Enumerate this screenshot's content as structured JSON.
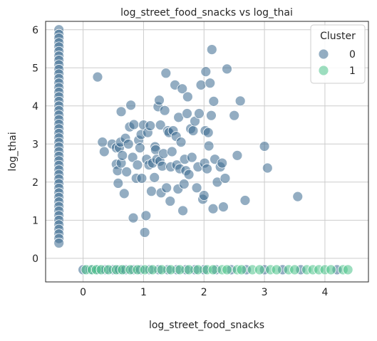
{
  "chart_data": {
    "type": "scatter",
    "title": "log_street_food_snacks vs log_thai",
    "xlabel": "log_street_food_snacks",
    "ylabel": "log_thai",
    "xlim": [
      -0.62,
      4.72
    ],
    "ylim": [
      -0.62,
      6.22
    ],
    "xticks": [
      0,
      1,
      2,
      3,
      4
    ],
    "yticks": [
      0,
      1,
      2,
      3,
      4,
      5,
      6
    ],
    "grid": true,
    "legend": {
      "title": "Cluster",
      "placement": "top-right"
    },
    "series": [
      {
        "name": "0",
        "color": "#3b6a8f",
        "points": [
          [
            -0.4,
            6.0
          ],
          [
            -0.4,
            5.88
          ],
          [
            -0.4,
            5.78
          ],
          [
            -0.4,
            5.66
          ],
          [
            -0.4,
            5.55
          ],
          [
            -0.4,
            5.43
          ],
          [
            -0.4,
            5.31
          ],
          [
            -0.4,
            5.2
          ],
          [
            -0.4,
            5.08
          ],
          [
            -0.4,
            4.96
          ],
          [
            -0.4,
            4.84
          ],
          [
            -0.4,
            4.72
          ],
          [
            -0.4,
            4.6
          ],
          [
            -0.4,
            4.48
          ],
          [
            -0.4,
            4.36
          ],
          [
            -0.4,
            4.24
          ],
          [
            -0.4,
            4.12
          ],
          [
            -0.4,
            4.0
          ],
          [
            -0.4,
            3.88
          ],
          [
            -0.4,
            3.76
          ],
          [
            -0.4,
            3.64
          ],
          [
            -0.4,
            3.52
          ],
          [
            -0.4,
            3.4
          ],
          [
            -0.4,
            3.28
          ],
          [
            -0.4,
            3.16
          ],
          [
            -0.4,
            3.04
          ],
          [
            -0.4,
            2.92
          ],
          [
            -0.4,
            2.8
          ],
          [
            -0.4,
            2.68
          ],
          [
            -0.4,
            2.56
          ],
          [
            -0.4,
            2.44
          ],
          [
            -0.4,
            2.32
          ],
          [
            -0.4,
            2.2
          ],
          [
            -0.4,
            2.08
          ],
          [
            -0.4,
            1.96
          ],
          [
            -0.4,
            1.84
          ],
          [
            -0.4,
            1.72
          ],
          [
            -0.4,
            1.6
          ],
          [
            -0.4,
            1.48
          ],
          [
            -0.4,
            1.36
          ],
          [
            -0.4,
            1.24
          ],
          [
            -0.4,
            1.12
          ],
          [
            -0.4,
            1.0
          ],
          [
            -0.4,
            0.88
          ],
          [
            -0.4,
            0.76
          ],
          [
            -0.4,
            0.64
          ],
          [
            -0.4,
            0.52
          ],
          [
            -0.4,
            0.4
          ],
          [
            0.24,
            4.76
          ],
          [
            0.32,
            3.05
          ],
          [
            0.35,
            2.8
          ],
          [
            0.48,
            3.0
          ],
          [
            0.55,
            2.9
          ],
          [
            0.55,
            2.47
          ],
          [
            0.58,
            1.97
          ],
          [
            0.57,
            2.3
          ],
          [
            0.6,
            2.9
          ],
          [
            0.62,
            3.05
          ],
          [
            0.63,
            2.5
          ],
          [
            0.65,
            2.7
          ],
          [
            0.63,
            3.85
          ],
          [
            0.68,
            1.7
          ],
          [
            0.7,
            3.15
          ],
          [
            0.72,
            2.27
          ],
          [
            0.75,
            3.0
          ],
          [
            0.77,
            3.45
          ],
          [
            0.79,
            4.02
          ],
          [
            0.82,
            2.65
          ],
          [
            0.83,
            1.06
          ],
          [
            0.84,
            3.51
          ],
          [
            0.88,
            2.1
          ],
          [
            0.9,
            2.45
          ],
          [
            0.92,
            3.1
          ],
          [
            0.94,
            2.9
          ],
          [
            0.96,
            3.25
          ],
          [
            0.97,
            2.1
          ],
          [
            1.0,
            3.5
          ],
          [
            1.02,
            0.68
          ],
          [
            1.04,
            1.12
          ],
          [
            1.05,
            2.6
          ],
          [
            1.07,
            3.3
          ],
          [
            1.09,
            2.45
          ],
          [
            1.11,
            3.48
          ],
          [
            1.13,
            1.76
          ],
          [
            1.15,
            2.5
          ],
          [
            1.18,
            2.12
          ],
          [
            1.19,
            2.93
          ],
          [
            1.2,
            2.85
          ],
          [
            1.22,
            2.6
          ],
          [
            1.24,
            3.98
          ],
          [
            1.26,
            4.15
          ],
          [
            1.27,
            2.55
          ],
          [
            1.28,
            3.5
          ],
          [
            1.29,
            1.72
          ],
          [
            1.31,
            2.42
          ],
          [
            1.33,
            2.75
          ],
          [
            1.35,
            3.88
          ],
          [
            1.37,
            4.86
          ],
          [
            1.38,
            1.85
          ],
          [
            1.4,
            3.35
          ],
          [
            1.42,
            3.3
          ],
          [
            1.44,
            1.5
          ],
          [
            1.45,
            2.4
          ],
          [
            1.47,
            2.8
          ],
          [
            1.49,
            3.35
          ],
          [
            1.52,
            4.55
          ],
          [
            1.54,
            3.2
          ],
          [
            1.55,
            2.45
          ],
          [
            1.57,
            1.82
          ],
          [
            1.58,
            3.7
          ],
          [
            1.6,
            2.35
          ],
          [
            1.62,
            3.05
          ],
          [
            1.64,
            4.45
          ],
          [
            1.65,
            1.25
          ],
          [
            1.67,
            1.95
          ],
          [
            1.68,
            2.6
          ],
          [
            1.7,
            2.3
          ],
          [
            1.72,
            3.8
          ],
          [
            1.73,
            4.24
          ],
          [
            1.75,
            2.2
          ],
          [
            1.78,
            3.4
          ],
          [
            1.8,
            2.65
          ],
          [
            1.82,
            3.35
          ],
          [
            1.85,
            3.6
          ],
          [
            1.88,
            1.85
          ],
          [
            1.9,
            2.4
          ],
          [
            1.92,
            3.8
          ],
          [
            1.95,
            4.55
          ],
          [
            1.98,
            1.55
          ],
          [
            2.0,
            1.65
          ],
          [
            2.01,
            2.5
          ],
          [
            2.02,
            3.35
          ],
          [
            2.03,
            4.9
          ],
          [
            2.05,
            2.35
          ],
          [
            2.07,
            3.3
          ],
          [
            2.08,
            2.95
          ],
          [
            2.1,
            4.6
          ],
          [
            2.12,
            3.75
          ],
          [
            2.13,
            5.48
          ],
          [
            2.15,
            1.3
          ],
          [
            2.16,
            4.12
          ],
          [
            2.18,
            2.6
          ],
          [
            2.22,
            2.0
          ],
          [
            2.27,
            2.4
          ],
          [
            2.3,
            2.5
          ],
          [
            2.32,
            1.35
          ],
          [
            2.35,
            2.1
          ],
          [
            2.38,
            4.97
          ],
          [
            2.5,
            3.75
          ],
          [
            2.55,
            2.7
          ],
          [
            2.6,
            4.13
          ],
          [
            2.68,
            1.52
          ],
          [
            3.0,
            2.94
          ],
          [
            3.05,
            2.37
          ],
          [
            3.55,
            1.62
          ],
          [
            0.0,
            -0.3
          ],
          [
            0.12,
            -0.3
          ],
          [
            0.25,
            -0.3
          ],
          [
            0.37,
            -0.3
          ],
          [
            0.5,
            -0.3
          ],
          [
            0.6,
            -0.3
          ],
          [
            0.7,
            -0.3
          ],
          [
            0.83,
            -0.3
          ],
          [
            0.95,
            -0.3
          ],
          [
            1.1,
            -0.3
          ],
          [
            1.25,
            -0.3
          ],
          [
            1.4,
            -0.3
          ],
          [
            1.55,
            -0.3
          ],
          [
            1.7,
            -0.3
          ],
          [
            1.85,
            -0.3
          ],
          [
            2.0,
            -0.3
          ],
          [
            2.2,
            -0.3
          ],
          [
            2.45,
            -0.3
          ],
          [
            2.7,
            -0.3
          ],
          [
            3.0,
            -0.3
          ],
          [
            3.3,
            -0.3
          ],
          [
            3.6,
            -0.3
          ],
          [
            4.2,
            -0.3
          ]
        ]
      },
      {
        "name": "1",
        "color": "#4cc38a",
        "points": [
          [
            0.05,
            -0.3
          ],
          [
            0.15,
            -0.3
          ],
          [
            0.22,
            -0.3
          ],
          [
            0.3,
            -0.3
          ],
          [
            0.42,
            -0.3
          ],
          [
            0.55,
            -0.3
          ],
          [
            0.65,
            -0.3
          ],
          [
            0.78,
            -0.3
          ],
          [
            0.9,
            -0.3
          ],
          [
            1.02,
            -0.3
          ],
          [
            1.15,
            -0.3
          ],
          [
            1.3,
            -0.3
          ],
          [
            1.45,
            -0.3
          ],
          [
            1.6,
            -0.3
          ],
          [
            1.75,
            -0.3
          ],
          [
            1.9,
            -0.3
          ],
          [
            2.05,
            -0.3
          ],
          [
            2.15,
            -0.3
          ],
          [
            2.3,
            -0.3
          ],
          [
            2.38,
            -0.3
          ],
          [
            2.55,
            -0.3
          ],
          [
            2.62,
            -0.3
          ],
          [
            2.8,
            -0.3
          ],
          [
            2.92,
            -0.3
          ],
          [
            3.1,
            -0.3
          ],
          [
            3.2,
            -0.3
          ],
          [
            3.4,
            -0.3
          ],
          [
            3.5,
            -0.3
          ],
          [
            3.7,
            -0.3
          ],
          [
            3.8,
            -0.3
          ],
          [
            3.9,
            -0.3
          ],
          [
            4.0,
            -0.3
          ],
          [
            4.1,
            -0.3
          ],
          [
            4.3,
            -0.3
          ],
          [
            4.38,
            -0.3
          ]
        ]
      }
    ]
  }
}
